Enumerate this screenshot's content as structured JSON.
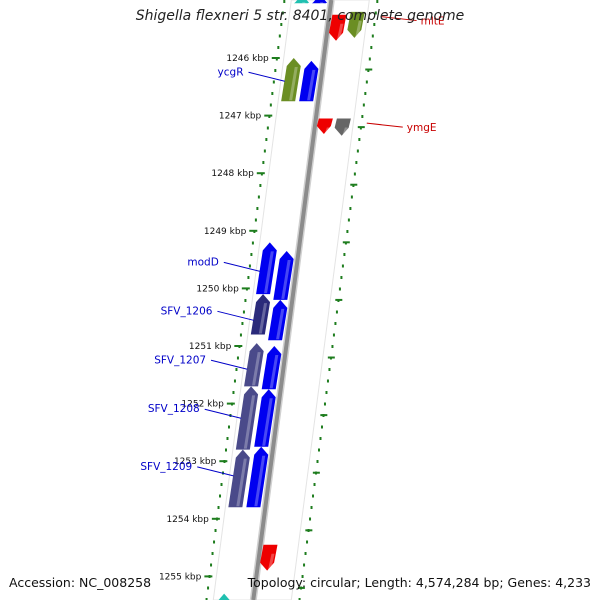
{
  "title": "Shigella flexneri 5 str. 8401, complete genome",
  "footer": {
    "accession": "Accession: NC_008258",
    "topology": "Topology: circular; Length: 4,574,284 bp; Genes: 4,233"
  },
  "colors": {
    "backbone": "#8c8c8c",
    "tick": "#1e7d1e",
    "forward_label": "#0000c8",
    "reverse_label": "#c80000",
    "cds_blue": "#0000f0",
    "cds_olive": "#6b8e23",
    "cds_red": "#ee0000",
    "cds_navy": "#2a2a7a",
    "cds_slate": "#4a4a8a",
    "cds_gray": "#666666",
    "cds_teal": "#20c0b0"
  },
  "ticks": [
    {
      "kbp": 1246,
      "label": "1246 kbp"
    },
    {
      "kbp": 1247,
      "label": "1247 kbp"
    },
    {
      "kbp": 1248,
      "label": "1248 kbp"
    },
    {
      "kbp": 1249,
      "label": "1249 kbp"
    },
    {
      "kbp": 1250,
      "label": "1250 kbp"
    },
    {
      "kbp": 1251,
      "label": "1251 kbp"
    },
    {
      "kbp": 1252,
      "label": "1252 kbp"
    },
    {
      "kbp": 1253,
      "label": "1253 kbp"
    },
    {
      "kbp": 1254,
      "label": "1254 kbp"
    },
    {
      "kbp": 1255,
      "label": "1255 kbp"
    }
  ],
  "genes": [
    {
      "id": "top-teal",
      "strand": "forward",
      "ring": "outer",
      "start_kbp": 1244.9,
      "end_kbp": 1245.05,
      "color": "cds_teal"
    },
    {
      "id": "top-blue",
      "strand": "forward",
      "ring": "inner",
      "start_kbp": 1244.9,
      "end_kbp": 1245.05,
      "color": "cds_blue"
    },
    {
      "id": "mltE-red",
      "strand": "reverse",
      "ring": "inner",
      "start_kbp": 1245.25,
      "end_kbp": 1245.7,
      "color": "cds_red"
    },
    {
      "id": "mltE-olive",
      "strand": "reverse",
      "ring": "outer",
      "start_kbp": 1245.2,
      "end_kbp": 1245.65,
      "color": "cds_olive"
    },
    {
      "id": "ycgR-olive",
      "strand": "forward",
      "ring": "outer",
      "start_kbp": 1246.0,
      "end_kbp": 1246.75,
      "color": "cds_olive"
    },
    {
      "id": "ycgR-blue",
      "strand": "forward",
      "ring": "inner",
      "start_kbp": 1246.05,
      "end_kbp": 1246.75,
      "color": "cds_blue"
    },
    {
      "id": "ymgE-red",
      "strand": "reverse",
      "ring": "inner",
      "start_kbp": 1247.05,
      "end_kbp": 1247.32,
      "color": "cds_red"
    },
    {
      "id": "ymgE-gray",
      "strand": "reverse",
      "ring": "outer",
      "start_kbp": 1247.05,
      "end_kbp": 1247.35,
      "color": "cds_gray"
    },
    {
      "id": "modD-outer",
      "strand": "forward",
      "ring": "outer",
      "start_kbp": 1249.2,
      "end_kbp": 1250.1,
      "color": "cds_blue"
    },
    {
      "id": "modD-inner",
      "strand": "forward",
      "ring": "inner",
      "start_kbp": 1249.35,
      "end_kbp": 1250.2,
      "color": "cds_blue"
    },
    {
      "id": "SFV_1206-navy",
      "strand": "forward",
      "ring": "outer",
      "start_kbp": 1250.1,
      "end_kbp": 1250.8,
      "color": "cds_navy"
    },
    {
      "id": "SFV_1206-blue",
      "strand": "forward",
      "ring": "inner",
      "start_kbp": 1250.2,
      "end_kbp": 1250.9,
      "color": "cds_blue"
    },
    {
      "id": "SFV_1207-slate",
      "strand": "forward",
      "ring": "outer",
      "start_kbp": 1250.95,
      "end_kbp": 1251.7,
      "color": "cds_slate"
    },
    {
      "id": "SFV_1207-blue",
      "strand": "forward",
      "ring": "inner",
      "start_kbp": 1251.0,
      "end_kbp": 1251.75,
      "color": "cds_blue"
    },
    {
      "id": "SFV_1208-slate",
      "strand": "forward",
      "ring": "outer",
      "start_kbp": 1251.7,
      "end_kbp": 1252.8,
      "color": "cds_slate"
    },
    {
      "id": "SFV_1208-blue",
      "strand": "forward",
      "ring": "inner",
      "start_kbp": 1251.75,
      "end_kbp": 1252.75,
      "color": "cds_blue"
    },
    {
      "id": "SFV_1209-slate",
      "strand": "forward",
      "ring": "outer",
      "start_kbp": 1252.8,
      "end_kbp": 1253.8,
      "color": "cds_slate"
    },
    {
      "id": "SFV_1209-blue",
      "strand": "forward",
      "ring": "inner",
      "start_kbp": 1252.75,
      "end_kbp": 1253.8,
      "color": "cds_blue"
    },
    {
      "id": "bottom-red",
      "strand": "reverse",
      "ring": "inner",
      "start_kbp": 1254.45,
      "end_kbp": 1254.9,
      "color": "cds_red"
    },
    {
      "id": "bottom-teal",
      "strand": "forward",
      "ring": "outer",
      "start_kbp": 1255.3,
      "end_kbp": 1255.5,
      "color": "cds_teal"
    }
  ],
  "labels": [
    {
      "name": "mltE",
      "strand": "reverse",
      "kbp": 1245.35
    },
    {
      "name": "ycgR",
      "strand": "forward",
      "kbp": 1246.3
    },
    {
      "name": "ymgE",
      "strand": "reverse",
      "kbp": 1247.2
    },
    {
      "name": "modD",
      "strand": "forward",
      "kbp": 1249.6
    },
    {
      "name": "SFV_1206",
      "strand": "forward",
      "kbp": 1250.45
    },
    {
      "name": "SFV_1207",
      "strand": "forward",
      "kbp": 1251.3
    },
    {
      "name": "SFV_1208",
      "strand": "forward",
      "kbp": 1252.15
    },
    {
      "name": "SFV_1209",
      "strand": "forward",
      "kbp": 1253.15
    }
  ]
}
